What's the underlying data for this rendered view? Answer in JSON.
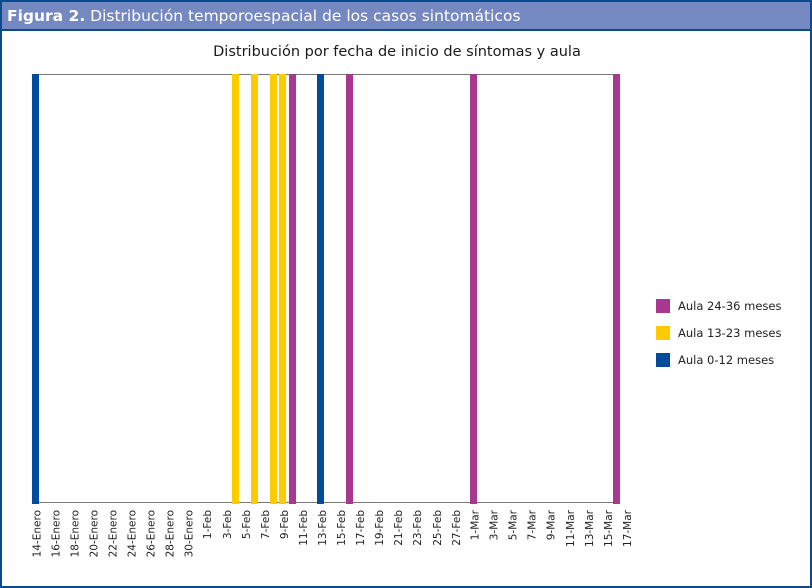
{
  "figure": {
    "label": "Figura 2.",
    "title": "Distribución temporoespacial de los casos sintomáticos"
  },
  "colors": {
    "header_bg": "#7589c0",
    "border": "#0d4a8c",
    "aula_24_36": "#a8388f",
    "aula_13_23": "#fdcb00",
    "aula_0_12": "#004b9a"
  },
  "chart_data": {
    "type": "bar",
    "title": "Distribución por fecha de inicio de síntomas y aula",
    "xlabel": "",
    "ylabel": "",
    "x_tick_labels": [
      "14-Enero",
      "16-Enero",
      "18-Enero",
      "20-Enero",
      "22-Enero",
      "24-Enero",
      "26-Enero",
      "28-Enero",
      "30-Enero",
      "1-Feb",
      "3-Feb",
      "5-Feb",
      "7-Feb",
      "9-Feb",
      "11-Feb",
      "13-Feb",
      "15-Feb",
      "17-Feb",
      "19-Feb",
      "21-Feb",
      "23-Feb",
      "25-Feb",
      "27-Feb",
      "1-Mar",
      "3-Mar",
      "5-Mar",
      "7-Mar",
      "9-Mar",
      "11-Mar",
      "13-Mar",
      "15-Mar",
      "17-Mar"
    ],
    "x_range": [
      "14-Enero",
      "17-Mar"
    ],
    "grid": false,
    "legend_position": "right",
    "series": [
      {
        "name": "Aula 24-36 meses",
        "color": "#a8388f",
        "dates": [
          "10-Feb",
          "16-Feb",
          "1-Mar",
          "16-Mar"
        ],
        "values": [
          1,
          1,
          1,
          1
        ]
      },
      {
        "name": "Aula 13-23 meses",
        "color": "#fdcb00",
        "dates": [
          "4-Feb",
          "6-Feb",
          "8-Feb",
          "9-Feb"
        ],
        "values": [
          1,
          1,
          1,
          1
        ]
      },
      {
        "name": "Aula 0-12 meses",
        "color": "#004b9a",
        "dates": [
          "14-Enero",
          "13-Feb"
        ],
        "values": [
          1,
          1
        ]
      }
    ],
    "bars": [
      {
        "date": "14-Enero",
        "day": 0,
        "series": "Aula 0-12 meses",
        "color": "#004b9a"
      },
      {
        "date": "4-Feb",
        "day": 21,
        "series": "Aula 13-23 meses",
        "color": "#fdcb00"
      },
      {
        "date": "6-Feb",
        "day": 23,
        "series": "Aula 13-23 meses",
        "color": "#fdcb00"
      },
      {
        "date": "8-Feb",
        "day": 25,
        "series": "Aula 13-23 meses",
        "color": "#fdcb00"
      },
      {
        "date": "9-Feb",
        "day": 26,
        "series": "Aula 13-23 meses",
        "color": "#fdcb00"
      },
      {
        "date": "10-Feb",
        "day": 27,
        "series": "Aula 24-36 meses",
        "color": "#a8388f"
      },
      {
        "date": "13-Feb",
        "day": 30,
        "series": "Aula 0-12 meses",
        "color": "#004b9a"
      },
      {
        "date": "16-Feb",
        "day": 33,
        "series": "Aula 24-36 meses",
        "color": "#a8388f"
      },
      {
        "date": "1-Mar",
        "day": 46,
        "series": "Aula 24-36 meses",
        "color": "#a8388f"
      },
      {
        "date": "16-Mar",
        "day": 61,
        "series": "Aula 24-36 meses",
        "color": "#a8388f"
      }
    ],
    "legend": [
      {
        "label": "Aula 24-36 meses",
        "color": "#a8388f"
      },
      {
        "label": "Aula 13-23 meses",
        "color": "#fdcb00"
      },
      {
        "label": "Aula 0-12 meses",
        "color": "#004b9a"
      }
    ]
  }
}
